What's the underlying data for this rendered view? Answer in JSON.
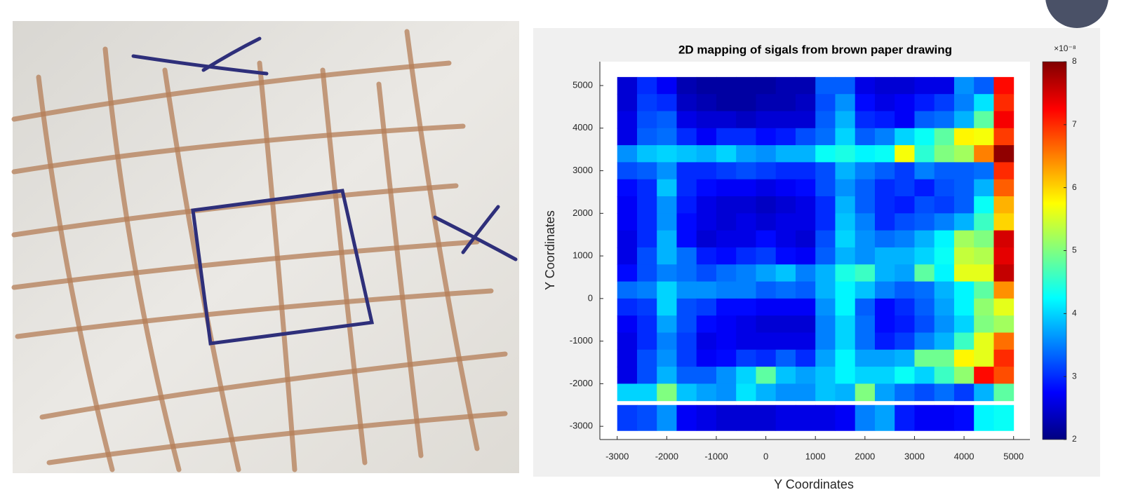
{
  "chart_data": {
    "type": "heatmap",
    "title": "2D mapping of sigals from brown paper drawing",
    "xlabel": "Y Coordinates",
    "ylabel": "Y Coordinates",
    "colormap": "jet",
    "x": [
      -2800,
      -2400,
      -2000,
      -1600,
      -1200,
      -800,
      -400,
      0,
      400,
      800,
      1200,
      1600,
      2000,
      2400,
      2800,
      3200,
      3600,
      4000,
      4400,
      4800
    ],
    "y": [
      5000,
      4600,
      4200,
      3800,
      3400,
      3000,
      2600,
      2200,
      1800,
      1400,
      1000,
      600,
      200,
      -200,
      -600,
      -1000,
      -1400,
      -1800,
      -2200,
      -2800
    ],
    "z": [
      [
        2.5,
        3.0,
        2.7,
        2.3,
        2.2,
        2.2,
        2.2,
        2.2,
        2.3,
        2.3,
        3.3,
        3.3,
        2.6,
        2.5,
        2.5,
        2.6,
        2.6,
        3.6,
        3.3,
        7.2
      ],
      [
        2.5,
        3.1,
        3.0,
        2.4,
        2.3,
        2.2,
        2.2,
        2.3,
        2.3,
        2.4,
        3.2,
        3.6,
        2.8,
        2.6,
        2.7,
        2.9,
        3.1,
        3.5,
        4.1,
        7.0
      ],
      [
        2.6,
        3.2,
        3.3,
        2.6,
        2.5,
        2.5,
        2.4,
        2.5,
        2.5,
        2.5,
        3.3,
        3.8,
        3.0,
        2.9,
        2.7,
        3.3,
        3.4,
        3.8,
        4.8,
        7.3
      ],
      [
        2.6,
        3.3,
        3.4,
        3.0,
        2.7,
        3.0,
        3.0,
        2.8,
        2.9,
        3.2,
        3.4,
        4.0,
        3.3,
        3.5,
        4.0,
        4.3,
        4.8,
        5.8,
        5.7,
        6.9
      ],
      [
        3.6,
        3.9,
        4.0,
        3.9,
        3.8,
        4.0,
        3.7,
        3.6,
        3.8,
        3.8,
        4.3,
        4.4,
        4.2,
        4.3,
        5.7,
        4.5,
        5.0,
        5.2,
        6.5,
        7.9
      ],
      [
        3.2,
        3.3,
        3.6,
        3.0,
        3.0,
        3.1,
        3.2,
        3.1,
        3.0,
        3.0,
        3.2,
        3.8,
        3.5,
        3.3,
        3.1,
        3.5,
        3.3,
        3.3,
        3.4,
        7.0
      ],
      [
        2.8,
        3.0,
        3.9,
        3.0,
        2.8,
        2.7,
        2.7,
        2.6,
        2.7,
        2.8,
        3.2,
        3.6,
        3.3,
        3.0,
        3.1,
        2.9,
        3.2,
        3.3,
        3.8,
        6.7
      ],
      [
        2.7,
        3.0,
        3.6,
        2.9,
        2.6,
        2.5,
        2.5,
        2.4,
        2.5,
        2.6,
        3.0,
        3.8,
        3.3,
        3.0,
        2.9,
        3.2,
        3.1,
        3.3,
        4.3,
        6.2
      ],
      [
        2.7,
        3.0,
        3.6,
        2.8,
        2.6,
        2.5,
        2.6,
        2.5,
        2.6,
        2.6,
        3.0,
        3.9,
        3.5,
        3.0,
        3.2,
        3.3,
        3.5,
        3.8,
        4.6,
        6.0
      ],
      [
        2.6,
        3.0,
        3.8,
        2.8,
        2.5,
        2.6,
        2.6,
        2.8,
        2.6,
        2.5,
        3.2,
        4.0,
        3.6,
        3.4,
        3.5,
        3.8,
        4.2,
        5.2,
        5.0,
        7.5
      ],
      [
        2.6,
        3.2,
        3.8,
        3.4,
        2.9,
        2.8,
        3.0,
        3.1,
        2.8,
        2.7,
        3.3,
        3.8,
        3.6,
        3.8,
        3.8,
        4.0,
        4.3,
        5.4,
        5.3,
        7.4
      ],
      [
        2.8,
        3.2,
        3.5,
        3.4,
        3.2,
        3.4,
        3.5,
        3.7,
        3.9,
        3.5,
        3.8,
        4.4,
        4.6,
        3.8,
        3.7,
        4.8,
        4.2,
        5.6,
        5.6,
        7.6
      ],
      [
        3.4,
        3.5,
        4.0,
        3.6,
        3.6,
        3.5,
        3.5,
        3.3,
        3.4,
        3.3,
        3.8,
        4.2,
        3.9,
        3.5,
        3.3,
        3.4,
        3.8,
        4.2,
        4.8,
        6.4
      ],
      [
        3.0,
        3.1,
        4.0,
        3.2,
        3.1,
        2.8,
        2.8,
        2.7,
        2.7,
        2.7,
        3.6,
        4.2,
        3.3,
        2.8,
        3.0,
        3.3,
        3.7,
        4.2,
        5.1,
        5.6
      ],
      [
        2.7,
        3.0,
        3.7,
        3.2,
        2.8,
        2.7,
        2.6,
        2.5,
        2.5,
        2.5,
        3.5,
        4.0,
        3.4,
        2.8,
        2.9,
        3.2,
        3.6,
        4.0,
        5.0,
        5.2
      ],
      [
        2.6,
        3.0,
        3.5,
        3.1,
        2.6,
        2.7,
        2.6,
        2.6,
        2.6,
        2.6,
        3.5,
        4.0,
        3.4,
        2.9,
        3.1,
        3.5,
        3.8,
        4.6,
        5.6,
        6.6
      ],
      [
        2.6,
        3.2,
        3.6,
        3.1,
        2.7,
        2.8,
        3.1,
        3.0,
        3.3,
        3.0,
        3.7,
        4.2,
        3.7,
        3.7,
        3.8,
        4.9,
        4.9,
        5.8,
        5.6,
        7.0
      ],
      [
        2.6,
        3.2,
        3.8,
        3.3,
        3.3,
        3.6,
        4.0,
        4.8,
        3.9,
        3.7,
        3.9,
        4.2,
        4.0,
        4.0,
        4.3,
        4.0,
        4.6,
        5.1,
        7.2,
        6.8
      ],
      [
        4.0,
        4.0,
        5.0,
        3.9,
        3.7,
        3.6,
        4.1,
        3.8,
        3.6,
        3.6,
        3.9,
        3.8,
        5.0,
        3.7,
        3.4,
        3.2,
        3.4,
        3.1,
        3.8,
        4.8
      ],
      [
        3.1,
        3.2,
        3.6,
        2.7,
        2.6,
        2.5,
        2.5,
        2.5,
        2.6,
        2.6,
        2.6,
        2.7,
        3.5,
        3.7,
        2.9,
        2.7,
        2.7,
        2.8,
        4.2,
        4.3
      ]
    ],
    "xlim": [
      -3350,
      5330
    ],
    "ylim": [
      -3310,
      5560
    ],
    "xticks": [
      -3000,
      -2000,
      -1000,
      0,
      1000,
      2000,
      3000,
      4000,
      5000
    ],
    "yticks": [
      -3000,
      -2000,
      -1000,
      0,
      1000,
      2000,
      3000,
      4000,
      5000
    ],
    "zlim": [
      2,
      8
    ],
    "zticks": [
      2,
      3,
      4,
      5,
      6,
      7,
      8
    ],
    "colorbar_label": "×10⁻⁸"
  }
}
